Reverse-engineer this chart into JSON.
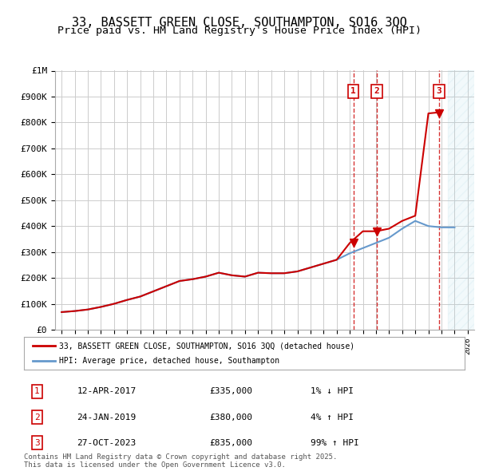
{
  "title": "33, BASSETT GREEN CLOSE, SOUTHAMPTON, SO16 3QQ",
  "subtitle": "Price paid vs. HM Land Registry's House Price Index (HPI)",
  "title_fontsize": 11,
  "subtitle_fontsize": 9.5,
  "background_color": "#ffffff",
  "grid_color": "#cccccc",
  "ylabel_color": "#000000",
  "hpi_line_color": "#6699cc",
  "price_line_color": "#cc0000",
  "marker_color": "#cc0000",
  "vline_color": "#cc0000",
  "ylim": [
    0,
    1000000
  ],
  "yticks": [
    0,
    100000,
    200000,
    300000,
    400000,
    500000,
    600000,
    700000,
    800000,
    900000,
    1000000
  ],
  "ytick_labels": [
    "£0",
    "£100K",
    "£200K",
    "£300K",
    "£400K",
    "£500K",
    "£600K",
    "£700K",
    "£800K",
    "£900K",
    "£1M"
  ],
  "xlim_start": 1994.5,
  "xlim_end": 2026.5,
  "hpi_years": [
    1995,
    1996,
    1997,
    1998,
    1999,
    2000,
    2001,
    2002,
    2003,
    2004,
    2005,
    2006,
    2007,
    2008,
    2009,
    2010,
    2011,
    2012,
    2013,
    2014,
    2015,
    2016,
    2017,
    2018,
    2019,
    2020,
    2021,
    2022,
    2023,
    2024,
    2025
  ],
  "hpi_values": [
    68000,
    72000,
    78000,
    88000,
    100000,
    115000,
    128000,
    148000,
    168000,
    188000,
    195000,
    205000,
    220000,
    210000,
    205000,
    220000,
    218000,
    218000,
    225000,
    240000,
    255000,
    270000,
    295000,
    315000,
    335000,
    355000,
    390000,
    420000,
    400000,
    395000,
    395000
  ],
  "price_years": [
    1995,
    1996,
    1997,
    1998,
    1999,
    2000,
    2001,
    2002,
    2003,
    2004,
    2005,
    2006,
    2007,
    2008,
    2009,
    2010,
    2011,
    2012,
    2013,
    2014,
    2015,
    2016,
    2017,
    2018,
    2019,
    2020,
    2021,
    2022,
    2023,
    2024
  ],
  "price_values": [
    68000,
    72000,
    78000,
    88000,
    100000,
    115000,
    128000,
    148000,
    168000,
    188000,
    195000,
    205000,
    220000,
    210000,
    205000,
    220000,
    218000,
    218000,
    225000,
    240000,
    255000,
    270000,
    335000,
    380000,
    380000,
    390000,
    420000,
    440000,
    835000,
    840000
  ],
  "transactions": [
    {
      "num": 1,
      "date": "12-APR-2017",
      "year": 2017.28,
      "price": 335000,
      "pct": "1%",
      "dir": "↓"
    },
    {
      "num": 2,
      "date": "24-JAN-2019",
      "year": 2019.07,
      "price": 380000,
      "pct": "4%",
      "dir": "↑"
    },
    {
      "num": 3,
      "date": "27-OCT-2023",
      "year": 2023.82,
      "price": 835000,
      "pct": "99%",
      "dir": "↑"
    }
  ],
  "legend_line1": "33, BASSETT GREEN CLOSE, SOUTHAMPTON, SO16 3QQ (detached house)",
  "legend_line2": "HPI: Average price, detached house, Southampton",
  "footnote": "Contains HM Land Registry data © Crown copyright and database right 2025.\nThis data is licensed under the Open Government Licence v3.0.",
  "future_shade_start": 2024.5,
  "future_shade_end": 2026.5
}
